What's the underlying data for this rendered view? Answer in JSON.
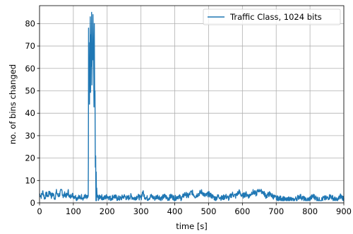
{
  "chart_data": {
    "type": "line",
    "title": "",
    "xlabel": "time [s]",
    "ylabel": "no. of bins changed",
    "xlim": [
      0,
      900
    ],
    "ylim": [
      0,
      88
    ],
    "xticks": [
      0,
      100,
      200,
      300,
      400,
      500,
      600,
      700,
      800,
      900
    ],
    "yticks": [
      0,
      10,
      20,
      30,
      40,
      50,
      60,
      70,
      80
    ],
    "grid": true,
    "legend_position": "top-right",
    "series": [
      {
        "name": "Traffic Class, 1024 bits",
        "color": "#1f77b4",
        "baseline_range": [
          1,
          6
        ],
        "x": [
          0,
          5,
          10,
          15,
          20,
          25,
          30,
          35,
          40,
          45,
          50,
          55,
          60,
          65,
          70,
          75,
          80,
          85,
          90,
          95,
          100,
          105,
          110,
          115,
          120,
          125,
          130,
          135,
          140,
          144,
          145,
          147,
          150,
          152,
          154,
          156,
          158,
          160,
          162,
          164,
          166,
          170,
          175,
          180,
          190,
          200,
          210,
          220,
          230,
          240,
          250,
          260,
          270,
          280,
          290,
          300,
          305,
          310,
          320,
          330,
          340,
          350,
          360,
          370,
          380,
          390,
          400,
          410,
          420,
          430,
          440,
          450,
          460,
          470,
          480,
          490,
          500,
          510,
          520,
          530,
          540,
          550,
          560,
          570,
          580,
          590,
          600,
          610,
          620,
          630,
          640,
          650,
          660,
          670,
          680,
          690,
          700,
          710,
          720,
          730,
          740,
          750,
          760,
          770,
          780,
          790,
          800,
          810,
          820,
          830,
          840,
          850,
          860,
          870,
          880,
          890,
          900
        ],
        "y": [
          4,
          3,
          5,
          2,
          4,
          3,
          5,
          3,
          4,
          2,
          5,
          3,
          4,
          6,
          3,
          4,
          3,
          5,
          2,
          4,
          3,
          3,
          2,
          3,
          2,
          3,
          2,
          3,
          2,
          3,
          78,
          60,
          83,
          75,
          85,
          70,
          84,
          64,
          80,
          50,
          21,
          3,
          2,
          3,
          2,
          3,
          2,
          3,
          2,
          2,
          3,
          2,
          3,
          2,
          3,
          2,
          5,
          3,
          2,
          3,
          2,
          3,
          2,
          3,
          2,
          3,
          2,
          3,
          2,
          4,
          3,
          5,
          3,
          4,
          5,
          3,
          4,
          3,
          2,
          3,
          2,
          3,
          2,
          4,
          3,
          5,
          3,
          4,
          3,
          5,
          4,
          6,
          5,
          3,
          4,
          3,
          2,
          2,
          2,
          1,
          2,
          1,
          2,
          3,
          2,
          1,
          2,
          3,
          2,
          1,
          2,
          2,
          3,
          2,
          1,
          3,
          2
        ]
      }
    ]
  }
}
